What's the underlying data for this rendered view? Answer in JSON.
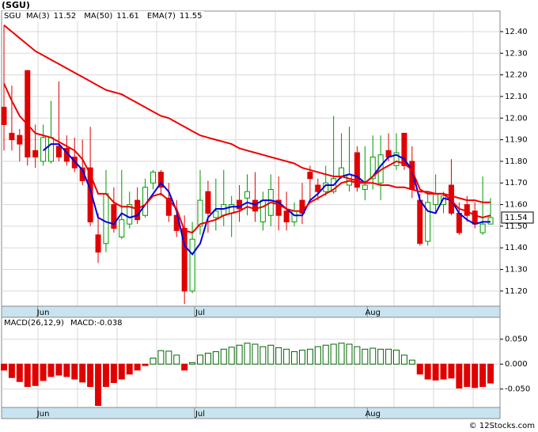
{
  "chart_data": [
    {
      "type": "candlestick",
      "title": "(SGU)",
      "symbol": "SGU",
      "last_price": 11.54,
      "categories": [
        null,
        null,
        null,
        null,
        null,
        "Jun",
        null,
        null,
        null,
        null,
        null,
        null,
        null,
        null,
        null,
        null,
        null,
        null,
        null,
        null,
        null,
        null,
        null,
        null,
        null,
        "Jul",
        null,
        null,
        null,
        null,
        null,
        null,
        null,
        null,
        null,
        null,
        null,
        null,
        null,
        null,
        null,
        null,
        null,
        null,
        null,
        null,
        null,
        "Aug",
        null,
        null,
        null,
        null,
        null,
        null,
        null,
        null,
        null,
        null,
        null,
        null,
        null,
        null,
        null
      ],
      "open": [
        12.05,
        11.93,
        11.92,
        12.22,
        11.85,
        11.8,
        11.8,
        11.87,
        11.86,
        11.82,
        11.77,
        11.77,
        11.46,
        11.42,
        11.6,
        11.45,
        11.51,
        11.62,
        11.55,
        11.7,
        11.75,
        11.63,
        11.55,
        11.49,
        11.2,
        11.5,
        11.66,
        11.54,
        11.55,
        11.56,
        11.62,
        11.63,
        11.62,
        11.52,
        11.55,
        11.62,
        11.57,
        11.52,
        11.62,
        11.75,
        11.69,
        11.66,
        11.66,
        11.73,
        11.69,
        11.84,
        11.67,
        11.72,
        11.7,
        11.85,
        11.78,
        11.93,
        11.8,
        11.62,
        11.43,
        11.6,
        11.6,
        11.69,
        11.56,
        11.6,
        11.57,
        11.47,
        11.51
      ],
      "high": [
        12.43,
        12.15,
        11.95,
        12.22,
        11.97,
        11.97,
        12.08,
        12.17,
        11.92,
        11.91,
        11.9,
        11.96,
        11.56,
        11.76,
        11.68,
        11.76,
        11.66,
        11.68,
        11.72,
        11.76,
        11.76,
        11.7,
        11.62,
        11.55,
        11.52,
        11.76,
        11.71,
        11.72,
        11.76,
        11.64,
        11.69,
        11.74,
        11.75,
        11.66,
        11.74,
        11.73,
        11.66,
        11.61,
        11.7,
        11.78,
        11.72,
        11.78,
        12.01,
        11.93,
        11.96,
        11.87,
        11.87,
        11.92,
        11.92,
        11.93,
        11.93,
        11.93,
        11.87,
        11.65,
        11.66,
        11.74,
        11.66,
        11.81,
        11.61,
        11.64,
        11.61,
        11.73,
        11.63
      ],
      "low": [
        11.85,
        11.85,
        11.8,
        11.78,
        11.77,
        11.78,
        11.79,
        11.8,
        11.78,
        11.75,
        11.69,
        11.5,
        11.33,
        11.38,
        11.47,
        11.44,
        11.49,
        11.51,
        11.54,
        11.67,
        11.64,
        11.52,
        11.45,
        11.14,
        11.19,
        11.46,
        11.47,
        11.48,
        11.5,
        11.45,
        11.52,
        11.55,
        11.52,
        11.48,
        11.5,
        11.48,
        11.48,
        11.5,
        11.51,
        11.62,
        11.62,
        11.64,
        11.65,
        11.72,
        11.66,
        11.66,
        11.62,
        11.67,
        11.62,
        11.8,
        11.76,
        11.76,
        11.63,
        11.41,
        11.41,
        11.56,
        11.56,
        11.55,
        11.46,
        11.52,
        11.49,
        11.46,
        11.51
      ],
      "close": [
        11.97,
        11.9,
        11.88,
        11.82,
        11.82,
        11.91,
        11.91,
        11.82,
        11.8,
        11.77,
        11.71,
        11.52,
        11.38,
        11.65,
        11.49,
        11.53,
        11.6,
        11.53,
        11.68,
        11.75,
        11.68,
        11.55,
        11.48,
        11.2,
        11.44,
        11.62,
        11.56,
        11.57,
        11.6,
        11.6,
        11.58,
        11.66,
        11.57,
        11.62,
        11.67,
        11.55,
        11.52,
        11.57,
        11.56,
        11.72,
        11.66,
        11.7,
        11.72,
        11.77,
        11.74,
        11.68,
        11.69,
        11.82,
        11.83,
        11.82,
        11.84,
        11.78,
        11.67,
        11.42,
        11.61,
        11.65,
        11.64,
        11.56,
        11.47,
        11.55,
        11.51,
        11.51,
        11.54
      ],
      "up_color": "#009900",
      "down_color": "#e00000",
      "series": [
        {
          "name": "MA(3)",
          "last": 11.52,
          "color": "#0000dd",
          "values": [
            null,
            null,
            null,
            null,
            null,
            11.85,
            11.88,
            11.88,
            11.84,
            11.8,
            11.76,
            11.67,
            11.54,
            11.52,
            11.51,
            11.56,
            11.54,
            11.55,
            11.6,
            11.65,
            11.7,
            11.66,
            11.57,
            11.41,
            11.37,
            11.42,
            11.54,
            11.58,
            11.58,
            11.59,
            11.59,
            11.61,
            11.6,
            11.62,
            11.62,
            11.61,
            11.58,
            11.55,
            11.55,
            11.62,
            11.65,
            11.69,
            11.69,
            11.73,
            11.74,
            11.73,
            11.7,
            11.73,
            11.78,
            11.82,
            11.83,
            11.81,
            11.76,
            11.62,
            11.57,
            11.56,
            11.63,
            11.62,
            11.56,
            11.53,
            11.51,
            11.52,
            11.52
          ]
        },
        {
          "name": "MA(50)",
          "last": 11.61,
          "color": "#ee0000",
          "values": [
            12.43,
            12.4,
            12.37,
            12.34,
            12.31,
            12.29,
            12.27,
            12.25,
            12.23,
            12.21,
            12.19,
            12.17,
            12.15,
            12.13,
            12.12,
            12.11,
            12.09,
            12.07,
            12.05,
            12.03,
            12.01,
            12.0,
            11.98,
            11.96,
            11.94,
            11.92,
            11.91,
            11.9,
            11.89,
            11.88,
            11.86,
            11.85,
            11.84,
            11.83,
            11.82,
            11.81,
            11.8,
            11.79,
            11.77,
            11.76,
            11.75,
            11.74,
            11.73,
            11.73,
            11.72,
            11.71,
            11.7,
            11.7,
            11.69,
            11.69,
            11.68,
            11.68,
            11.67,
            11.66,
            11.66,
            11.65,
            11.65,
            11.64,
            11.63,
            11.62,
            11.62,
            11.61,
            11.61
          ]
        },
        {
          "name": "EMA(7)",
          "last": 11.55,
          "color": "#ee0000",
          "values": [
            12.16,
            12.08,
            12.01,
            11.97,
            11.93,
            11.92,
            11.91,
            11.89,
            11.87,
            11.85,
            11.81,
            11.74,
            11.65,
            11.65,
            11.61,
            11.59,
            11.59,
            11.58,
            11.6,
            11.64,
            11.65,
            11.62,
            11.58,
            11.48,
            11.47,
            11.51,
            11.52,
            11.53,
            11.55,
            11.56,
            11.57,
            11.59,
            11.58,
            11.59,
            11.61,
            11.6,
            11.58,
            11.57,
            11.57,
            11.61,
            11.63,
            11.65,
            11.67,
            11.7,
            11.71,
            11.7,
            11.7,
            11.73,
            11.76,
            11.78,
            11.8,
            11.79,
            11.76,
            11.67,
            11.65,
            11.65,
            11.65,
            11.62,
            11.58,
            11.57,
            11.55,
            11.54,
            11.55
          ]
        }
      ],
      "ylim": [
        11.13,
        12.495
      ],
      "yticks": [
        {
          "value": 11.2,
          "label": "11.20"
        },
        {
          "value": 11.3,
          "label": "11.30"
        },
        {
          "value": 11.4,
          "label": "11.40"
        },
        {
          "value": 11.5,
          "label": "11.50"
        },
        {
          "value": 11.6,
          "label": "11.60"
        },
        {
          "value": 11.7,
          "label": "11.70"
        },
        {
          "value": 11.8,
          "label": "11.80"
        },
        {
          "value": 11.9,
          "label": "11.90"
        },
        {
          "value": 12.0,
          "label": "12.00"
        },
        {
          "value": 12.1,
          "label": "12.10"
        },
        {
          "value": 12.2,
          "label": "12.20"
        },
        {
          "value": 12.3,
          "label": "12.30"
        },
        {
          "value": 12.4,
          "label": "12.40"
        }
      ],
      "grid": true
    },
    {
      "type": "histogram",
      "title": "MACD(26,12,9)",
      "value_name": "MACD:",
      "last": -0.038,
      "categories": [
        null,
        null,
        null,
        null,
        null,
        "Jun",
        null,
        null,
        null,
        null,
        null,
        null,
        null,
        null,
        null,
        null,
        null,
        null,
        null,
        null,
        null,
        null,
        null,
        null,
        null,
        "Jul",
        null,
        null,
        null,
        null,
        null,
        null,
        null,
        null,
        null,
        null,
        null,
        null,
        null,
        null,
        null,
        null,
        null,
        null,
        null,
        null,
        null,
        "Aug",
        null,
        null,
        null,
        null,
        null,
        null,
        null,
        null,
        null,
        null,
        null,
        null,
        null,
        null,
        null
      ],
      "values": [
        -0.012,
        -0.027,
        -0.035,
        -0.045,
        -0.043,
        -0.033,
        -0.025,
        -0.022,
        -0.025,
        -0.03,
        -0.036,
        -0.045,
        -0.083,
        -0.045,
        -0.037,
        -0.03,
        -0.02,
        -0.012,
        -0.003,
        0.012,
        0.027,
        0.026,
        0.018,
        -0.012,
        0.003,
        0.018,
        0.022,
        0.025,
        0.03,
        0.034,
        0.038,
        0.042,
        0.04,
        0.035,
        0.038,
        0.033,
        0.03,
        0.025,
        0.028,
        0.03,
        0.035,
        0.038,
        0.04,
        0.042,
        0.04,
        0.035,
        0.03,
        0.032,
        0.03,
        0.03,
        0.028,
        0.018,
        0.008,
        -0.02,
        -0.03,
        -0.032,
        -0.03,
        -0.028,
        -0.048,
        -0.045,
        -0.047,
        -0.045,
        -0.038
      ],
      "pos_color": "#006600",
      "neg_color": "#e00000",
      "ylim": [
        -0.087,
        0.094
      ],
      "yticks": [
        {
          "value": -0.05,
          "label": "-0.050"
        },
        {
          "value": 0,
          "label": "0.000"
        },
        {
          "value": 0.05,
          "label": "0.050"
        }
      ],
      "grid": true
    }
  ],
  "footer": "© 12Stocks.com"
}
